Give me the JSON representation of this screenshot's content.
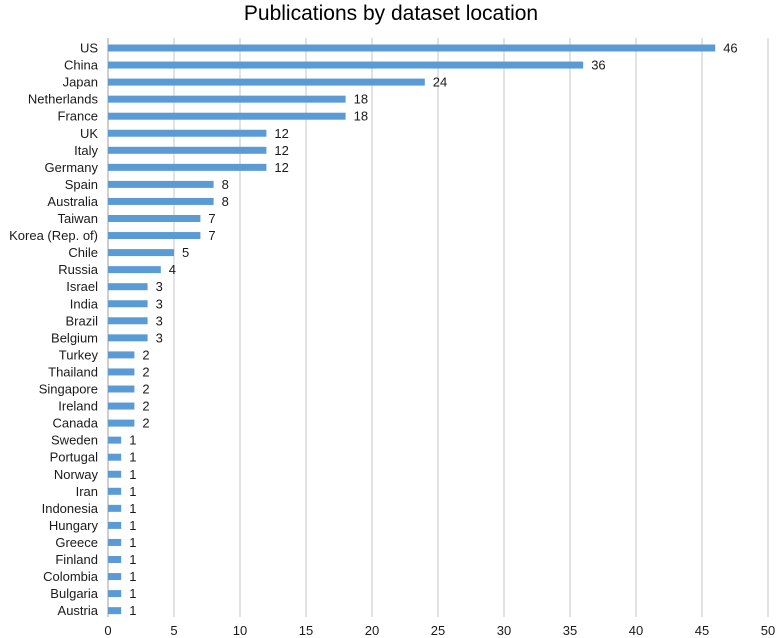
{
  "chart_data": {
    "type": "bar",
    "orientation": "horizontal",
    "title": "Publications by dataset location",
    "xlabel": "",
    "ylabel": "",
    "xlim": [
      0,
      50
    ],
    "x_ticks": [
      0,
      5,
      10,
      15,
      20,
      25,
      30,
      35,
      40,
      45,
      50
    ],
    "grid": "vertical",
    "legend": "none",
    "bar_color": "#5b9bd5",
    "categories": [
      "US",
      "China",
      "Japan",
      "Netherlands",
      "France",
      "UK",
      "Italy",
      "Germany",
      "Spain",
      "Australia",
      "Taiwan",
      "Korea (Rep. of)",
      "Chile",
      "Russia",
      "Israel",
      "India",
      "Brazil",
      "Belgium",
      "Turkey",
      "Thailand",
      "Singapore",
      "Ireland",
      "Canada",
      "Sweden",
      "Portugal",
      "Norway",
      "Iran",
      "Indonesia",
      "Hungary",
      "Greece",
      "Finland",
      "Colombia",
      "Bulgaria",
      "Austria"
    ],
    "values": [
      46,
      36,
      24,
      18,
      18,
      12,
      12,
      12,
      8,
      8,
      7,
      7,
      5,
      4,
      3,
      3,
      3,
      3,
      2,
      2,
      2,
      2,
      2,
      1,
      1,
      1,
      1,
      1,
      1,
      1,
      1,
      1,
      1,
      1
    ]
  }
}
